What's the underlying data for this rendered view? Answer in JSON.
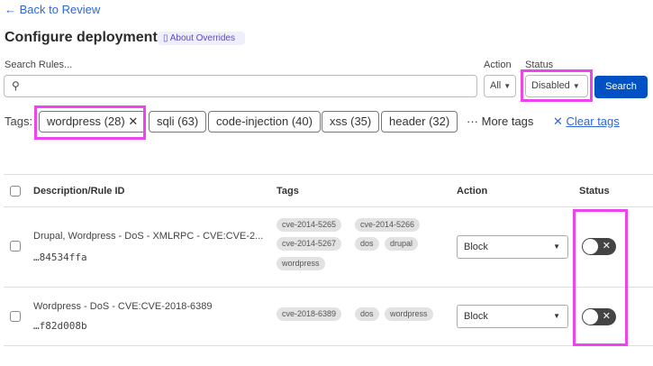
{
  "nav": {
    "back_label": "← Back to Review"
  },
  "header": {
    "title": "Configure deployment",
    "about_label": "About Overrides"
  },
  "search": {
    "label": "Search Rules...",
    "value": "",
    "placeholder": "",
    "action_label": "Action",
    "action_value": "All",
    "status_label": "Status",
    "status_value": "Disabled",
    "button_label": "Search"
  },
  "tags": {
    "label": "Tags:",
    "chips": [
      {
        "label": "wordpress (28)",
        "selected": true
      },
      {
        "label": "sqli (63)"
      },
      {
        "label": "code-injection (40)"
      },
      {
        "label": "xss (35)"
      },
      {
        "label": "header (32)"
      }
    ],
    "more_label": "More tags",
    "clear_label": "Clear tags"
  },
  "table": {
    "headers": [
      "Description/Rule ID",
      "Tags",
      "Action",
      "Status"
    ],
    "rows": [
      {
        "description": "Drupal, Wordpress - DoS - XMLRPC - CVE:CVE-2...",
        "rule_id": "…84534ffa",
        "tags": [
          "cve-2014-5265",
          "cve-2014-5266",
          "cve-2014-5267",
          "dos",
          "drupal",
          "wordpress"
        ],
        "action": "Block",
        "enabled": false
      },
      {
        "description": "Wordpress - DoS - CVE:CVE-2018-6389",
        "rule_id": "…f82d008b",
        "tags": [
          "cve-2018-6389",
          "dos",
          "wordpress"
        ],
        "action": "Block",
        "enabled": false
      }
    ]
  },
  "colors": {
    "accent": "#0051c3",
    "link": "#2c67d6",
    "highlight": "#ee44ee"
  }
}
